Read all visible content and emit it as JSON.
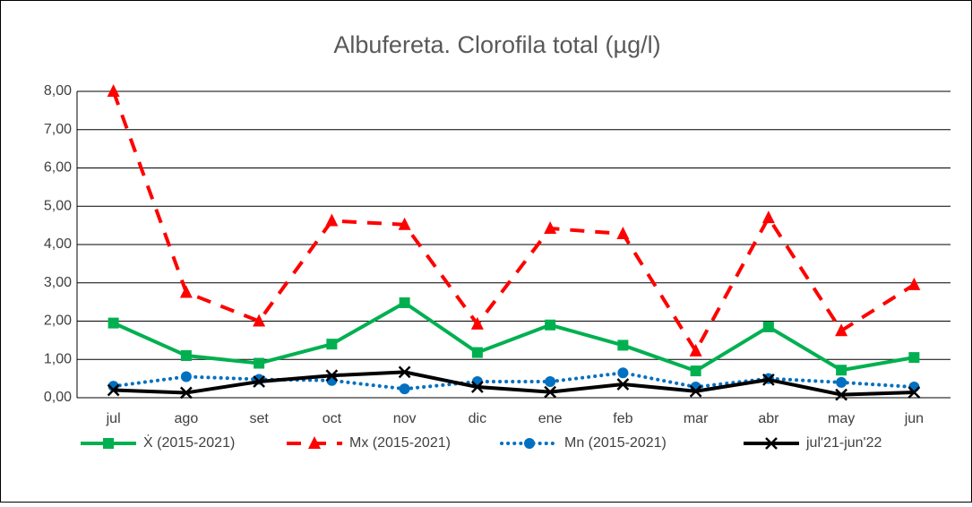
{
  "chart_data": {
    "type": "line",
    "title": "Albufereta. Clorofila total (µg/l)",
    "categories": [
      "jul",
      "ago",
      "set",
      "oct",
      "nov",
      "dic",
      "ene",
      "feb",
      "mar",
      "abr",
      "may",
      "jun"
    ],
    "series": [
      {
        "name": "Ẋ (2015-2021)",
        "color": "#00b050",
        "dash": "solid",
        "marker": "square",
        "values": [
          1.95,
          1.1,
          0.9,
          1.4,
          2.48,
          1.18,
          1.9,
          1.37,
          0.7,
          1.85,
          0.72,
          1.05
        ]
      },
      {
        "name": "Mx (2015-2021)",
        "color": "#ff0000",
        "dash": "dashed",
        "marker": "triangle",
        "values": [
          8.0,
          2.75,
          2.0,
          4.62,
          4.52,
          1.92,
          4.42,
          4.28,
          1.22,
          4.7,
          1.75,
          2.95
        ]
      },
      {
        "name": "Mn (2015-2021)",
        "color": "#0070c0",
        "dash": "dotted",
        "marker": "circle",
        "values": [
          0.3,
          0.55,
          0.48,
          0.45,
          0.23,
          0.42,
          0.42,
          0.65,
          0.28,
          0.5,
          0.4,
          0.28
        ]
      },
      {
        "name": "jul'21-jun'22",
        "color": "#000000",
        "dash": "solid",
        "marker": "x",
        "values": [
          0.2,
          0.13,
          0.42,
          0.58,
          0.67,
          0.28,
          0.15,
          0.35,
          0.17,
          0.47,
          0.08,
          0.14
        ]
      }
    ],
    "ylim": [
      0,
      8
    ],
    "yticks": [
      {
        "value": 0,
        "label": "0,00"
      },
      {
        "value": 1,
        "label": "1,00"
      },
      {
        "value": 2,
        "label": "2,00"
      },
      {
        "value": 3,
        "label": "3,00"
      },
      {
        "value": 4,
        "label": "4,00"
      },
      {
        "value": 5,
        "label": "5,00"
      },
      {
        "value": 6,
        "label": "6,00"
      },
      {
        "value": 7,
        "label": "7,00"
      },
      {
        "value": 8,
        "label": "8,00"
      }
    ],
    "grid": true,
    "legend": "bottom"
  }
}
